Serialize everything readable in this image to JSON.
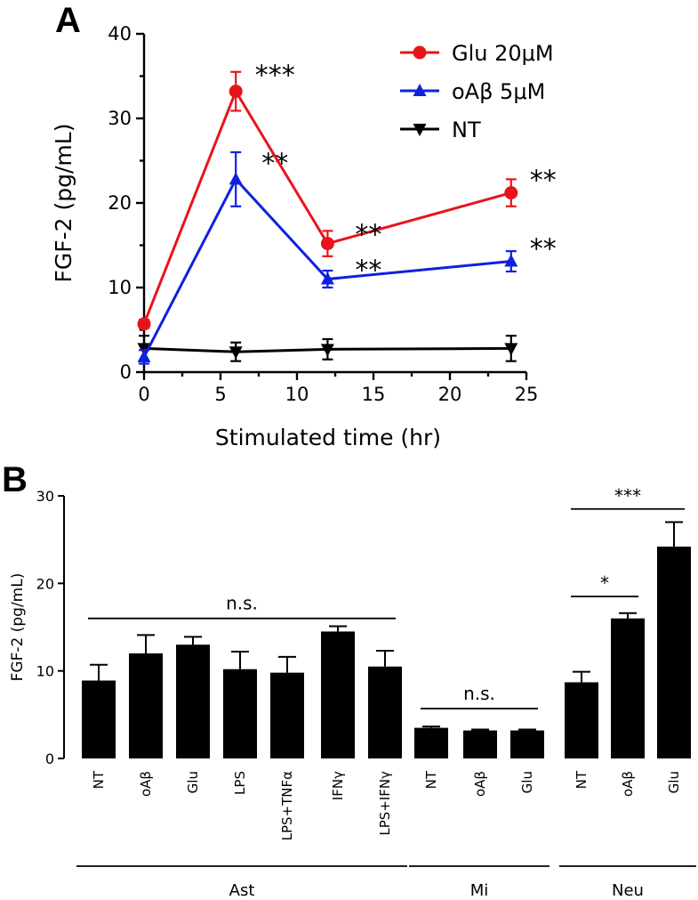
{
  "chart_data": [
    {
      "panel": "A",
      "type": "line",
      "title": "",
      "xlabel": "Stimulated time (hr)",
      "ylabel": "FGF-2 (pg/mL)",
      "xlim": [
        0,
        25
      ],
      "ylim": [
        0,
        40
      ],
      "xticks": [
        0,
        5,
        10,
        15,
        20,
        25
      ],
      "yticks": [
        0,
        10,
        20,
        30,
        40
      ],
      "legend_position": "top-right",
      "series": [
        {
          "name": "Glu 20μM",
          "color": "#e8141c",
          "marker": "circle",
          "x": [
            0,
            6,
            12,
            24
          ],
          "y": [
            5.7,
            33.2,
            15.2,
            21.2
          ],
          "err": [
            0.5,
            2.3,
            1.5,
            1.6
          ],
          "significance": [
            "",
            "***",
            "**",
            "**"
          ]
        },
        {
          "name": "oAβ 5μM",
          "color": "#1020e0",
          "marker": "triangle-up",
          "x": [
            0,
            6,
            12,
            24
          ],
          "y": [
            1.8,
            22.8,
            11.0,
            13.1
          ],
          "err": [
            0.8,
            3.2,
            1.0,
            1.2
          ],
          "significance": [
            "",
            "**",
            "**",
            "**"
          ]
        },
        {
          "name": "NT",
          "color": "#000000",
          "marker": "triangle-down",
          "x": [
            0,
            6,
            12,
            24
          ],
          "y": [
            2.8,
            2.4,
            2.7,
            2.8
          ],
          "err": [
            1.5,
            1.1,
            1.2,
            1.5
          ],
          "significance": [
            "",
            "",
            "",
            ""
          ]
        }
      ]
    },
    {
      "panel": "B",
      "type": "bar",
      "title": "",
      "xlabel": "",
      "ylabel": "FGF-2 (pg/mL)",
      "ylim": [
        0,
        30
      ],
      "yticks": [
        0,
        10,
        20,
        30
      ],
      "categories": [
        "NT",
        "oAβ",
        "Glu",
        "LPS",
        "LPS+TNFα",
        "IFNγ",
        "LPS+IFNγ",
        "NT",
        "oAβ",
        "Glu",
        "NT",
        "oAβ",
        "Glu"
      ],
      "values": [
        8.9,
        12.0,
        13.0,
        10.2,
        9.8,
        14.5,
        10.5,
        3.5,
        3.2,
        3.2,
        8.7,
        16.0,
        24.2
      ],
      "errors": [
        1.8,
        2.1,
        0.9,
        2.0,
        1.8,
        0.6,
        1.8,
        0.15,
        0.1,
        0.1,
        1.2,
        0.6,
        2.8
      ],
      "groups": [
        {
          "label": "Ast",
          "start": 0,
          "end": 6
        },
        {
          "label": "Mi",
          "start": 7,
          "end": 9
        },
        {
          "label": "Neu",
          "start": 10,
          "end": 12
        }
      ],
      "comparisons": [
        {
          "from": 0,
          "to": 6,
          "label": "n.s.",
          "y": 16.0
        },
        {
          "from": 7,
          "to": 9,
          "label": "n.s.",
          "y": 5.7
        },
        {
          "from": 10,
          "to": 11,
          "label": "*",
          "y": 18.5
        },
        {
          "from": 10,
          "to": 12,
          "label": "***",
          "y": 28.5
        }
      ]
    }
  ],
  "panels": {
    "a_label": "A",
    "b_label": "B"
  },
  "colors": {
    "axis": "#000000",
    "bar_fill": "#000000"
  }
}
